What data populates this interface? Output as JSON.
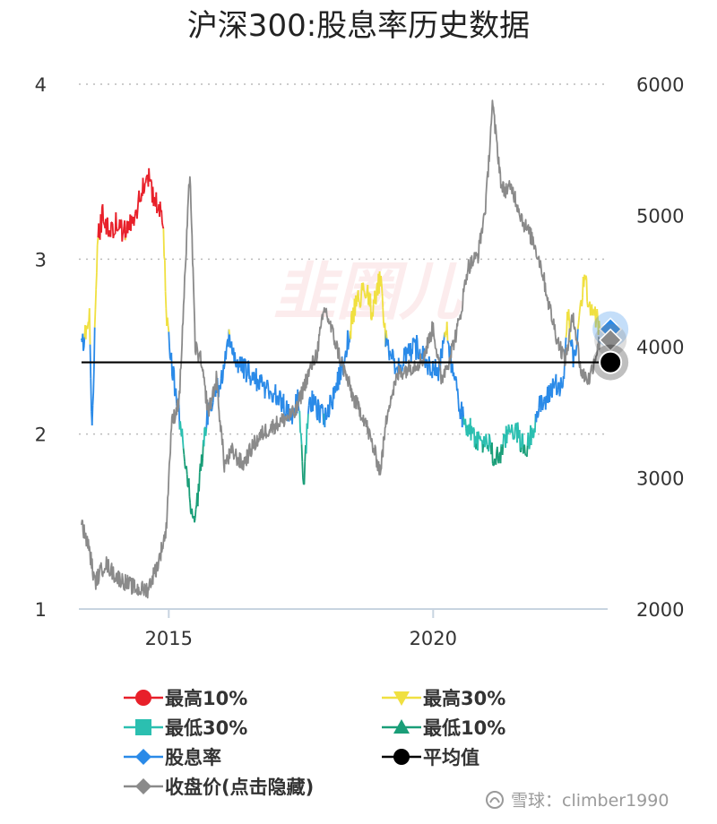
{
  "chart_data": {
    "type": "line",
    "title": "沪深300:股息率历史数据",
    "x_range": [
      2013.3,
      2023.3
    ],
    "x_ticks": [
      {
        "value": 2015,
        "label": "2015"
      },
      {
        "value": 2020,
        "label": "2020"
      }
    ],
    "y_left": {
      "min": 1,
      "max": 4,
      "ticks": [
        "1",
        "2",
        "3",
        "4"
      ]
    },
    "y_right": {
      "min": 2000,
      "max": 6000,
      "ticks": [
        "2000",
        "3000",
        "4000",
        "5000",
        "6000"
      ]
    },
    "grid": "horizontal dotted",
    "legend_position": "bottom",
    "thresholds": {
      "high10": 3.12,
      "high30": 2.56,
      "low30": 2.08,
      "low10": 1.93
    },
    "average": 2.41,
    "colors": {
      "high10": "#e8202a",
      "high30": "#f0e040",
      "low30": "#2bbfb0",
      "low10": "#1a9e78",
      "yield": "#2a8ae8",
      "average": "#000000",
      "price": "#8a8a8a"
    },
    "series": [
      {
        "name": "股息率",
        "axis": "left",
        "points": [
          [
            2013.35,
            2.5
          ],
          [
            2013.5,
            2.65
          ],
          [
            2013.55,
            2.0
          ],
          [
            2013.65,
            3.1
          ],
          [
            2013.75,
            3.25
          ],
          [
            2013.9,
            3.15
          ],
          [
            2014.0,
            3.2
          ],
          [
            2014.2,
            3.15
          ],
          [
            2014.4,
            3.3
          ],
          [
            2014.5,
            3.4
          ],
          [
            2014.6,
            3.5
          ],
          [
            2014.7,
            3.35
          ],
          [
            2014.8,
            3.3
          ],
          [
            2014.9,
            3.2
          ],
          [
            2014.95,
            2.7
          ],
          [
            2015.1,
            2.3
          ],
          [
            2015.3,
            1.9
          ],
          [
            2015.45,
            1.5
          ],
          [
            2015.55,
            1.65
          ],
          [
            2015.7,
            2.05
          ],
          [
            2015.85,
            2.25
          ],
          [
            2016.0,
            2.3
          ],
          [
            2016.15,
            2.55
          ],
          [
            2016.3,
            2.4
          ],
          [
            2016.5,
            2.35
          ],
          [
            2016.7,
            2.3
          ],
          [
            2016.9,
            2.25
          ],
          [
            2017.1,
            2.2
          ],
          [
            2017.3,
            2.1
          ],
          [
            2017.45,
            2.2
          ],
          [
            2017.55,
            1.7
          ],
          [
            2017.65,
            2.2
          ],
          [
            2017.8,
            2.15
          ],
          [
            2017.95,
            2.1
          ],
          [
            2018.1,
            2.2
          ],
          [
            2018.3,
            2.4
          ],
          [
            2018.5,
            2.7
          ],
          [
            2018.7,
            2.85
          ],
          [
            2018.85,
            2.7
          ],
          [
            2019.0,
            2.9
          ],
          [
            2019.1,
            2.55
          ],
          [
            2019.3,
            2.35
          ],
          [
            2019.5,
            2.45
          ],
          [
            2019.7,
            2.5
          ],
          [
            2019.9,
            2.4
          ],
          [
            2020.1,
            2.35
          ],
          [
            2020.25,
            2.6
          ],
          [
            2020.4,
            2.3
          ],
          [
            2020.55,
            2.1
          ],
          [
            2020.75,
            2.0
          ],
          [
            2020.9,
            1.95
          ],
          [
            2021.05,
            1.95
          ],
          [
            2021.15,
            1.85
          ],
          [
            2021.3,
            1.9
          ],
          [
            2021.45,
            2.05
          ],
          [
            2021.6,
            2.0
          ],
          [
            2021.75,
            1.9
          ],
          [
            2021.9,
            2.05
          ],
          [
            2022.0,
            2.15
          ],
          [
            2022.15,
            2.2
          ],
          [
            2022.3,
            2.3
          ],
          [
            2022.45,
            2.25
          ],
          [
            2022.55,
            2.7
          ],
          [
            2022.65,
            2.4
          ],
          [
            2022.75,
            2.6
          ],
          [
            2022.85,
            2.9
          ],
          [
            2022.95,
            2.75
          ],
          [
            2023.05,
            2.7
          ],
          [
            2023.15,
            2.6
          ]
        ]
      },
      {
        "name": "收盘价(点击隐藏)",
        "axis": "right",
        "points": [
          [
            2013.35,
            2650
          ],
          [
            2013.5,
            2450
          ],
          [
            2013.6,
            2200
          ],
          [
            2013.8,
            2350
          ],
          [
            2014.0,
            2250
          ],
          [
            2014.2,
            2200
          ],
          [
            2014.4,
            2150
          ],
          [
            2014.6,
            2150
          ],
          [
            2014.8,
            2350
          ],
          [
            2014.95,
            2600
          ],
          [
            2015.05,
            3400
          ],
          [
            2015.2,
            3600
          ],
          [
            2015.4,
            5350
          ],
          [
            2015.5,
            4000
          ],
          [
            2015.6,
            3900
          ],
          [
            2015.75,
            3500
          ],
          [
            2015.9,
            3750
          ],
          [
            2016.05,
            3100
          ],
          [
            2016.2,
            3200
          ],
          [
            2016.4,
            3100
          ],
          [
            2016.6,
            3250
          ],
          [
            2016.8,
            3350
          ],
          [
            2017.0,
            3400
          ],
          [
            2017.2,
            3450
          ],
          [
            2017.4,
            3500
          ],
          [
            2017.6,
            3750
          ],
          [
            2017.8,
            3950
          ],
          [
            2017.95,
            4300
          ],
          [
            2018.1,
            4100
          ],
          [
            2018.25,
            3900
          ],
          [
            2018.5,
            3600
          ],
          [
            2018.7,
            3450
          ],
          [
            2018.85,
            3250
          ],
          [
            2019.0,
            3050
          ],
          [
            2019.15,
            3550
          ],
          [
            2019.35,
            3800
          ],
          [
            2019.6,
            3850
          ],
          [
            2019.8,
            3900
          ],
          [
            2020.0,
            4150
          ],
          [
            2020.15,
            3750
          ],
          [
            2020.3,
            3900
          ],
          [
            2020.5,
            4200
          ],
          [
            2020.65,
            4600
          ],
          [
            2020.85,
            4700
          ],
          [
            2021.0,
            5100
          ],
          [
            2021.12,
            5850
          ],
          [
            2021.3,
            5200
          ],
          [
            2021.5,
            5200
          ],
          [
            2021.7,
            4950
          ],
          [
            2021.9,
            4800
          ],
          [
            2022.05,
            4600
          ],
          [
            2022.2,
            4300
          ],
          [
            2022.35,
            4050
          ],
          [
            2022.5,
            3900
          ],
          [
            2022.65,
            4250
          ],
          [
            2022.8,
            3800
          ],
          [
            2022.95,
            3750
          ],
          [
            2023.05,
            3900
          ],
          [
            2023.15,
            4050
          ]
        ]
      },
      {
        "name": "平均值",
        "axis": "left",
        "points": [
          [
            2013.35,
            2.41
          ],
          [
            2023.15,
            2.41
          ]
        ]
      }
    ],
    "legend": [
      {
        "key": "high10",
        "label": "最高10%",
        "marker": "circle"
      },
      {
        "key": "high30",
        "label": "最高30%",
        "marker": "triangle-down"
      },
      {
        "key": "low30",
        "label": "最低30%",
        "marker": "square"
      },
      {
        "key": "low10",
        "label": "最低10%",
        "marker": "triangle-up"
      },
      {
        "key": "yield",
        "label": "股息率",
        "marker": "diamond"
      },
      {
        "key": "average",
        "label": "平均值",
        "marker": "circle"
      },
      {
        "key": "price",
        "label": "收盘价(点击隐藏)",
        "marker": "diamond"
      }
    ]
  },
  "watermark": {
    "icon": "snowball-logo-icon",
    "text": "雪球：climber1990"
  }
}
